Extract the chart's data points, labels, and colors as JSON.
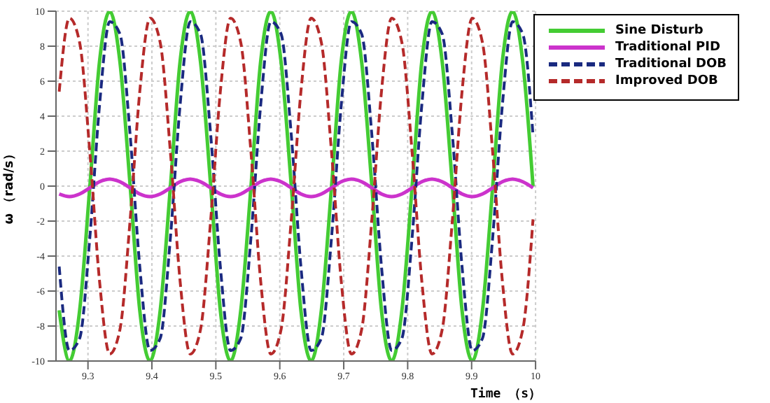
{
  "chart_data": {
    "type": "line",
    "xlabel": "Time （s）",
    "ylabel": "ω （rad/s）",
    "x": [
      9.255,
      9.271,
      9.287,
      9.303,
      9.318,
      9.334,
      9.35,
      9.366,
      9.381,
      9.397,
      9.413,
      9.429,
      9.444,
      9.46,
      9.476,
      9.492,
      9.507,
      9.523,
      9.539,
      9.555,
      9.57,
      9.586,
      9.602,
      9.618,
      9.633,
      9.649,
      9.665,
      9.681,
      9.696,
      9.712,
      9.728,
      9.744,
      9.759,
      9.775,
      9.791,
      9.807,
      9.822,
      9.838,
      9.854,
      9.87,
      9.885,
      9.901,
      9.917,
      9.933,
      9.948,
      9.964,
      9.98,
      9.996
    ],
    "series": [
      {
        "name": "Sine Disturb",
        "color": "#44cc33",
        "line_style": "solid",
        "values": [
          -7.1,
          -10,
          -7.1,
          0,
          7.1,
          10,
          7.1,
          0,
          -7.1,
          -10,
          -7.1,
          0,
          7.1,
          10,
          7.1,
          0,
          -7.1,
          -10,
          -7.1,
          0,
          7.1,
          10,
          7.1,
          0,
          -7.1,
          -10,
          -7.1,
          0,
          7.1,
          10,
          7.1,
          0,
          -7.1,
          -10,
          -7.1,
          0,
          7.1,
          10,
          7.1,
          0,
          -7.1,
          -10,
          -7.1,
          0,
          7.1,
          10,
          7.1,
          0
        ]
      },
      {
        "name": "Traditional PID",
        "color": "#cc33cc",
        "line_style": "solid",
        "values": [
          -0.45,
          -0.6,
          -0.45,
          -0.1,
          0.25,
          0.4,
          0.25,
          -0.1,
          -0.45,
          -0.6,
          -0.45,
          -0.1,
          0.25,
          0.4,
          0.25,
          -0.1,
          -0.45,
          -0.6,
          -0.45,
          -0.1,
          0.25,
          0.4,
          0.25,
          -0.1,
          -0.45,
          -0.6,
          -0.45,
          -0.1,
          0.25,
          0.4,
          0.25,
          -0.1,
          -0.45,
          -0.6,
          -0.45,
          -0.1,
          0.25,
          0.4,
          0.25,
          -0.1,
          -0.45,
          -0.6,
          -0.45,
          -0.1,
          0.25,
          0.4,
          0.25,
          -0.1
        ]
      },
      {
        "name": "Traditional DOB",
        "color": "#1a2a80",
        "line_style": "dashed",
        "values": [
          -4.6,
          -9.4,
          -8.7,
          -2.9,
          4.6,
          9.4,
          8.7,
          2.9,
          -4.6,
          -9.4,
          -8.7,
          -2.9,
          4.6,
          9.4,
          8.7,
          2.9,
          -4.6,
          -9.4,
          -8.7,
          -2.9,
          4.6,
          9.4,
          8.7,
          2.9,
          -4.6,
          -9.4,
          -8.7,
          -2.9,
          4.6,
          9.4,
          8.7,
          2.9,
          -4.6,
          -9.4,
          -8.7,
          -2.9,
          4.6,
          9.4,
          8.7,
          2.9,
          -4.6,
          -9.4,
          -8.7,
          -2.9,
          4.6,
          9.4,
          8.7,
          2.9
        ]
      },
      {
        "name": "Improved DOB",
        "color": "#b52a2a",
        "line_style": "dashed",
        "values": [
          5.4,
          9.6,
          8.2,
          1.9,
          -5.4,
          -9.6,
          -8.2,
          -1.9,
          5.4,
          9.6,
          8.2,
          1.9,
          -5.4,
          -9.6,
          -8.2,
          -1.9,
          5.4,
          9.6,
          8.2,
          1.9,
          -5.4,
          -9.6,
          -8.2,
          -1.9,
          5.4,
          9.6,
          8.2,
          1.9,
          -5.4,
          -9.6,
          -8.2,
          -1.9,
          5.4,
          9.6,
          8.2,
          1.9,
          -5.4,
          -9.6,
          -8.2,
          -1.9,
          5.4,
          9.6,
          8.2,
          1.9,
          -5.4,
          -9.6,
          -8.2,
          -1.9
        ]
      }
    ],
    "xlim": [
      9.25,
      10
    ],
    "xticks": [
      9.3,
      9.4,
      9.5,
      9.6,
      9.7,
      9.8,
      9.9,
      10
    ],
    "ylim": [
      -10,
      10
    ],
    "yticks": [
      -10,
      -8,
      -6,
      -4,
      -2,
      0,
      2,
      4,
      6,
      8,
      10
    ],
    "grid": true,
    "legend": "top right"
  }
}
